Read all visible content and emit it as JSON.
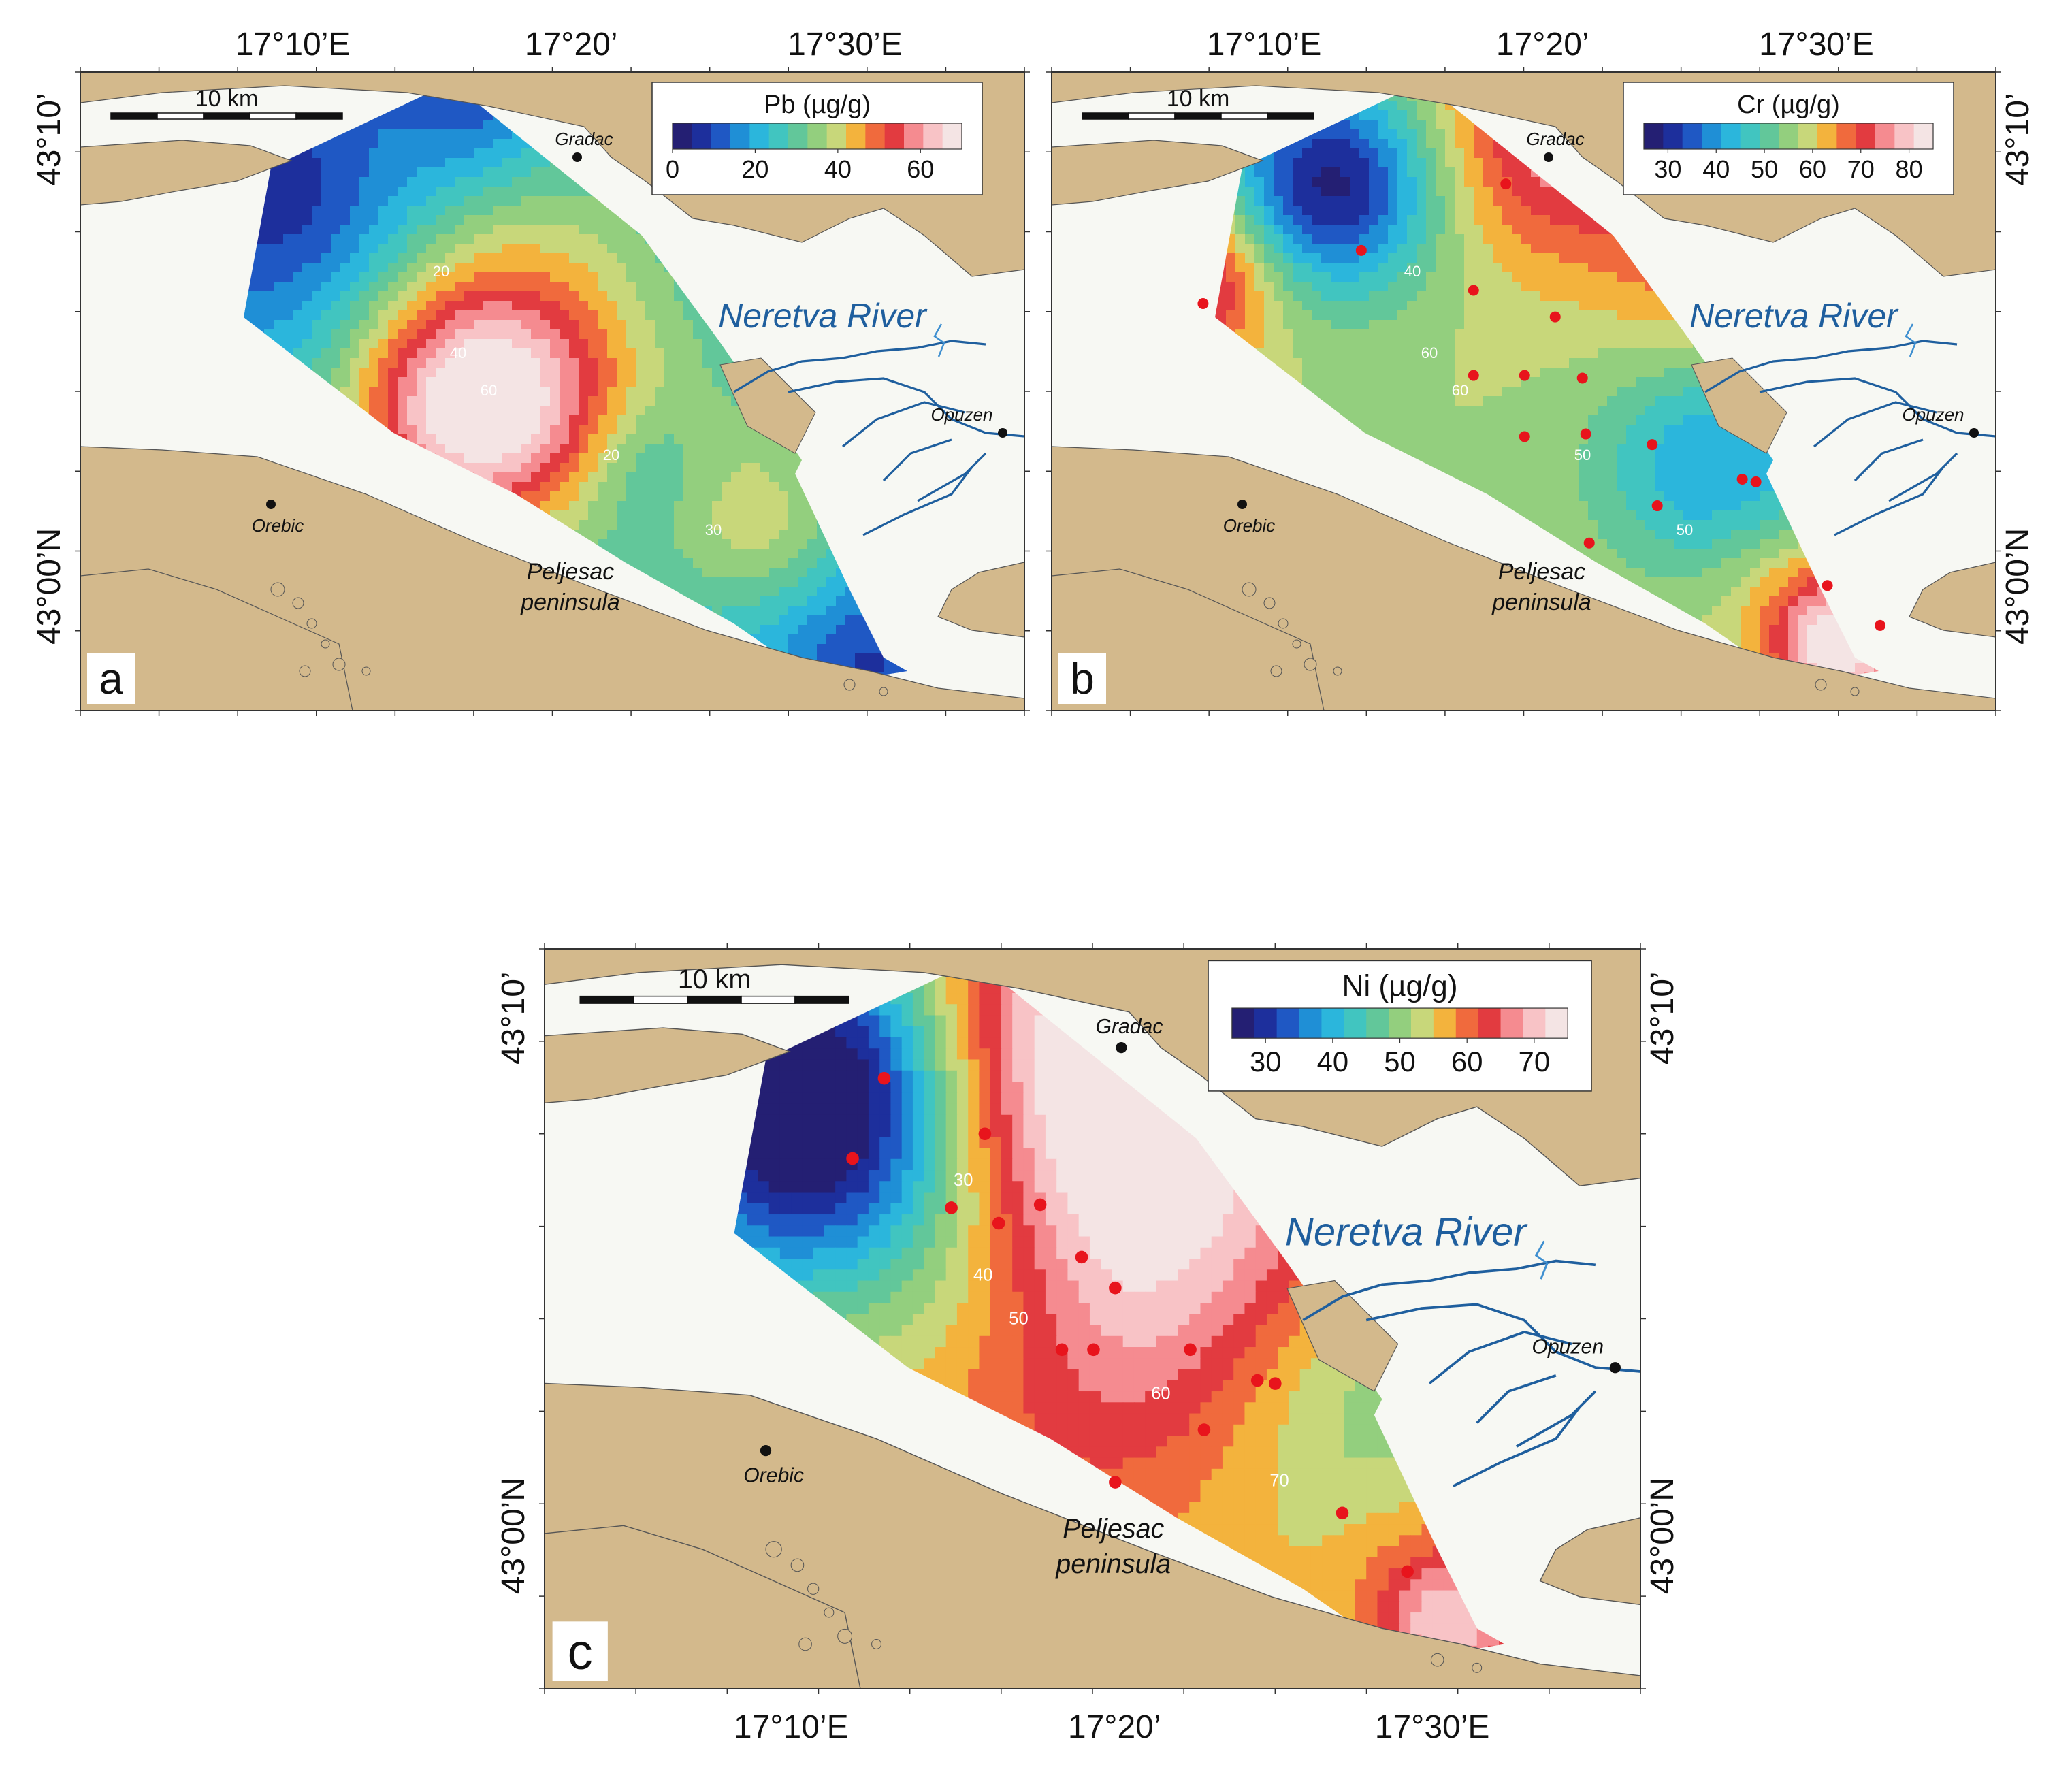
{
  "colors": {
    "land": "#d3b98c",
    "sea": "#f7f8f3",
    "river": "#1f5f9e",
    "sample": "#e8141c",
    "ramp": [
      "#241f73",
      "#1d2f9c",
      "#1f58c4",
      "#1f8fd6",
      "#2bb6dc",
      "#41c5c0",
      "#62c79a",
      "#93cf7e",
      "#c8d77a",
      "#f3b33d",
      "#f06a3d",
      "#e23b40",
      "#f58b90",
      "#f8c3c6",
      "#f4e4e4"
    ]
  },
  "panels": [
    {
      "id": "a",
      "letter": "a",
      "colorbar": {
        "title": "Pb (µg/g)",
        "ticks": [
          "0",
          "20",
          "40",
          "60"
        ],
        "min": 0,
        "max": 70
      },
      "top_ticks": [
        "17°10’E",
        "17°20’",
        "17°30’E"
      ],
      "left_ticks": [
        "43°10’",
        "43°00’N"
      ],
      "right_ticks": [],
      "bottom_ticks": [],
      "scale_label": "10 km",
      "contours": [
        "20",
        "40",
        "60",
        "20",
        "30"
      ],
      "samples": []
    },
    {
      "id": "b",
      "letter": "b",
      "colorbar": {
        "title": "Cr (µg/g)",
        "ticks": [
          "30",
          "40",
          "50",
          "60",
          "70",
          "80"
        ],
        "min": 25,
        "max": 85
      },
      "top_ticks": [
        "17°10’E",
        "17°20’",
        "17°30’E"
      ],
      "left_ticks": [],
      "right_ticks": [
        "43°10’",
        "43°00’N"
      ],
      "bottom_ticks": [],
      "scale_label": "10 km",
      "contours": [
        "40",
        "60",
        "60",
        "50",
        "50"
      ],
      "samples": [
        [
          17.327,
          43.128
        ],
        [
          17.242,
          43.103
        ],
        [
          17.149,
          43.083
        ],
        [
          17.308,
          43.088
        ],
        [
          17.356,
          43.078
        ],
        [
          17.308,
          43.056
        ],
        [
          17.338,
          43.056
        ],
        [
          17.372,
          43.055
        ],
        [
          17.338,
          43.033
        ],
        [
          17.374,
          43.034
        ],
        [
          17.413,
          43.03
        ],
        [
          17.466,
          43.017
        ],
        [
          17.474,
          43.016
        ],
        [
          17.416,
          43.007
        ],
        [
          17.376,
          42.993
        ],
        [
          17.516,
          42.977
        ],
        [
          17.547,
          42.962
        ]
      ]
    },
    {
      "id": "c",
      "letter": "c",
      "colorbar": {
        "title": "Ni (µg/g)",
        "ticks": [
          "30",
          "40",
          "50",
          "60",
          "70"
        ],
        "min": 25,
        "max": 75
      },
      "top_ticks": [],
      "left_ticks": [
        "43°10’",
        "43°00’N"
      ],
      "right_ticks": [
        "43°10’",
        "43°00’N"
      ],
      "bottom_ticks": [
        "17°10’E",
        "17°20’",
        "17°30’E"
      ],
      "scale_label": "10 km",
      "contours": [
        "30",
        "40",
        "50",
        "60",
        "70"
      ],
      "samples": [
        [
          17.232,
          43.128
        ],
        [
          17.216,
          43.102
        ],
        [
          17.266,
          43.086
        ],
        [
          17.283,
          43.11
        ],
        [
          17.311,
          43.087
        ],
        [
          17.332,
          43.07
        ],
        [
          17.29,
          43.081
        ],
        [
          17.349,
          43.06
        ],
        [
          17.322,
          43.04
        ],
        [
          17.338,
          43.04
        ],
        [
          17.387,
          43.04
        ],
        [
          17.421,
          43.03
        ],
        [
          17.43,
          43.029
        ],
        [
          17.394,
          43.014
        ],
        [
          17.349,
          42.997
        ],
        [
          17.464,
          42.987
        ],
        [
          17.497,
          42.968
        ]
      ]
    }
  ],
  "labels": {
    "gradac": "Gradac",
    "opuzen": "Opuzen",
    "orebic": "Orebic",
    "neretva": "Neretva River",
    "peljesac_1": "Peljesac",
    "peljesac_2": "peninsula"
  }
}
